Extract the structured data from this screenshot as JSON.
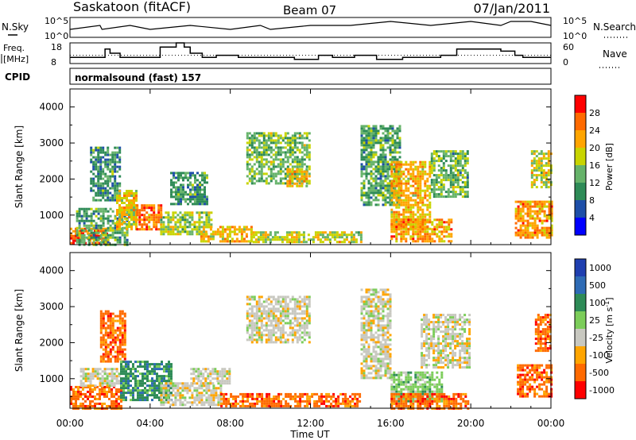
{
  "header": {
    "station": "Saskatoon (fitACF)",
    "beam": "Beam 07",
    "date": "07/Jan/2011"
  },
  "noise_panel": {
    "left_label": "N.Sky",
    "right_label": "N.Search",
    "left_ticks": [
      "10^5",
      "10^0"
    ],
    "right_ticks": [
      "10^5",
      "10^0"
    ]
  },
  "freq_panel": {
    "left_label_1": "Freq.",
    "left_label_2": "[MHz]",
    "right_label": "Nave",
    "left_ticks": [
      "18",
      "8"
    ],
    "right_ticks": [
      "60",
      "0"
    ]
  },
  "cpid": {
    "label": "CPID",
    "program": "normalsound (fast) 157"
  },
  "x_axis": {
    "title": "Time UT",
    "ticks": [
      "00:00",
      "04:00",
      "08:00",
      "12:00",
      "16:00",
      "20:00",
      "00:00"
    ]
  },
  "colors": {
    "power_scale": [
      "#0000ff",
      "#1e4fa8",
      "#2e8b57",
      "#66b36a",
      "#c8d400",
      "#ffa500",
      "#ff6a00",
      "#ff0000"
    ],
    "velocity_scale": [
      "#1f3fb0",
      "#2e6bb5",
      "#2e8b57",
      "#7ccd5a",
      "#c8c8c0",
      "#ffa500",
      "#ff6a00",
      "#ff0000"
    ]
  },
  "chart_data": [
    {
      "type": "line",
      "title": "Saskatoon (fitACF)",
      "ylabel": "N.Sky",
      "x": [
        0,
        1.5,
        1.6,
        3,
        4,
        6,
        8,
        9.5,
        10,
        12,
        14,
        16,
        18,
        20,
        21.5,
        22,
        23,
        24
      ],
      "series": [
        {
          "name": "N.Sky",
          "values": [
            2,
            3,
            2,
            3,
            2,
            3,
            2,
            3,
            2,
            3,
            3,
            4,
            3,
            4,
            3,
            4,
            4,
            3
          ]
        }
      ],
      "ylim": [
        0,
        5
      ],
      "notes": "noise level on log scale, ticks 10^0 to 10^5"
    },
    {
      "type": "line",
      "ylabel": "Freq. [MHz]",
      "x": [
        0,
        1.75,
        2.0,
        2.5,
        4.5,
        5.3,
        5.7,
        6.0,
        6.6,
        7.3,
        8.4,
        10.8,
        11.2,
        12.4,
        13.1,
        14.2,
        15.3,
        16.6,
        17.5,
        18.5,
        19.3,
        21.5,
        22.2,
        22.6,
        24
      ],
      "series": [
        {
          "name": "Freq.",
          "values": [
            11,
            15,
            13,
            11,
            16,
            18,
            16,
            13,
            11,
            12,
            11,
            11,
            10,
            12,
            11,
            12,
            10,
            11,
            11,
            12,
            15,
            14,
            12,
            11,
            11
          ]
        },
        {
          "name": "Nave",
          "values": [
            24,
            24,
            24,
            24,
            24,
            24,
            24,
            24,
            24,
            24,
            24,
            24,
            24,
            24,
            24,
            24,
            24,
            24,
            24,
            24,
            24,
            24,
            24,
            24,
            24
          ]
        }
      ],
      "ylim": [
        8,
        18
      ],
      "y2lim": [
        0,
        60
      ]
    },
    {
      "type": "heatmap",
      "ylabel": "Slant Range [km]",
      "xlabel": "",
      "colorbar_label": "Power [dB]",
      "colorbar_ticks": [
        4,
        8,
        12,
        16,
        20,
        24,
        28
      ],
      "ylim": [
        180,
        4500
      ],
      "xlim": [
        0,
        24
      ],
      "yticks": [
        1000,
        2000,
        3000,
        4000
      ],
      "regions": [
        {
          "t0": 0.0,
          "t1": 1.8,
          "r0": 200,
          "r1": 650,
          "value": 28
        },
        {
          "t0": 0.3,
          "t1": 2.8,
          "r0": 200,
          "r1": 1200,
          "value": 12
        },
        {
          "t0": 1.0,
          "t1": 2.5,
          "r0": 1400,
          "r1": 2900,
          "value": 10
        },
        {
          "t0": 2.3,
          "t1": 3.3,
          "r0": 600,
          "r1": 1700,
          "value": 20
        },
        {
          "t0": 3.3,
          "t1": 4.5,
          "r0": 600,
          "r1": 1300,
          "value": 27
        },
        {
          "t0": 4.5,
          "t1": 7.0,
          "r0": 500,
          "r1": 1100,
          "value": 16
        },
        {
          "t0": 5.0,
          "t1": 6.8,
          "r0": 1300,
          "r1": 2200,
          "value": 10
        },
        {
          "t0": 6.5,
          "t1": 9.0,
          "r0": 300,
          "r1": 700,
          "value": 22
        },
        {
          "t0": 8.8,
          "t1": 12.0,
          "r0": 1900,
          "r1": 3300,
          "value": 14
        },
        {
          "t0": 10.8,
          "t1": 11.8,
          "r0": 1800,
          "r1": 2300,
          "value": 22
        },
        {
          "t0": 9.0,
          "t1": 14.5,
          "r0": 250,
          "r1": 550,
          "value": 18
        },
        {
          "t0": 14.5,
          "t1": 16.5,
          "r0": 1300,
          "r1": 3500,
          "value": 12
        },
        {
          "t0": 16.0,
          "t1": 18.0,
          "r0": 600,
          "r1": 2500,
          "value": 22
        },
        {
          "t0": 16.0,
          "t1": 19.0,
          "r0": 300,
          "r1": 900,
          "value": 24
        },
        {
          "t0": 18.0,
          "t1": 19.9,
          "r0": 1500,
          "r1": 2800,
          "value": 14
        },
        {
          "t0": 22.2,
          "t1": 24.0,
          "r0": 400,
          "r1": 1400,
          "value": 24
        },
        {
          "t0": 23.0,
          "t1": 24.0,
          "r0": 1800,
          "r1": 2800,
          "value": 18
        }
      ]
    },
    {
      "type": "heatmap",
      "ylabel": "Slant Range [km]",
      "xlabel": "Time UT",
      "colorbar_label": "Velocity [m s^-1]",
      "colorbar_ticks": [
        1000,
        500,
        100,
        25,
        -25,
        -100,
        -500,
        -1000
      ],
      "ylim": [
        180,
        4500
      ],
      "xlim": [
        0,
        24
      ],
      "yticks": [
        1000,
        2000,
        3000,
        4000
      ],
      "regions": [
        {
          "t0": 0.0,
          "t1": 2.5,
          "r0": 200,
          "r1": 800,
          "value": -150
        },
        {
          "t0": 0.5,
          "t1": 2.5,
          "r0": 800,
          "r1": 1300,
          "value": 0
        },
        {
          "t0": 1.5,
          "t1": 2.8,
          "r0": 1500,
          "r1": 2900,
          "value": -300
        },
        {
          "t0": 2.5,
          "t1": 5.0,
          "r0": 400,
          "r1": 1500,
          "value": 150
        },
        {
          "t0": 4.5,
          "t1": 7.5,
          "r0": 300,
          "r1": 900,
          "value": 0
        },
        {
          "t0": 6.0,
          "t1": 8.0,
          "r0": 900,
          "r1": 1300,
          "value": 0
        },
        {
          "t0": 7.5,
          "t1": 14.5,
          "r0": 250,
          "r1": 600,
          "value": -150
        },
        {
          "t0": 8.8,
          "t1": 12.0,
          "r0": 2000,
          "r1": 3300,
          "value": 0
        },
        {
          "t0": 14.5,
          "t1": 16.0,
          "r0": 1000,
          "r1": 3500,
          "value": 0
        },
        {
          "t0": 16.0,
          "t1": 18.5,
          "r0": 400,
          "r1": 1200,
          "value": 50
        },
        {
          "t0": 16.0,
          "t1": 19.9,
          "r0": 200,
          "r1": 600,
          "value": -150
        },
        {
          "t0": 17.5,
          "t1": 19.9,
          "r0": 1300,
          "r1": 2800,
          "value": 0
        },
        {
          "t0": 22.3,
          "t1": 24.0,
          "r0": 500,
          "r1": 1400,
          "value": -200
        },
        {
          "t0": 23.2,
          "t1": 24.0,
          "r0": 1800,
          "r1": 2800,
          "value": -400
        }
      ]
    }
  ]
}
